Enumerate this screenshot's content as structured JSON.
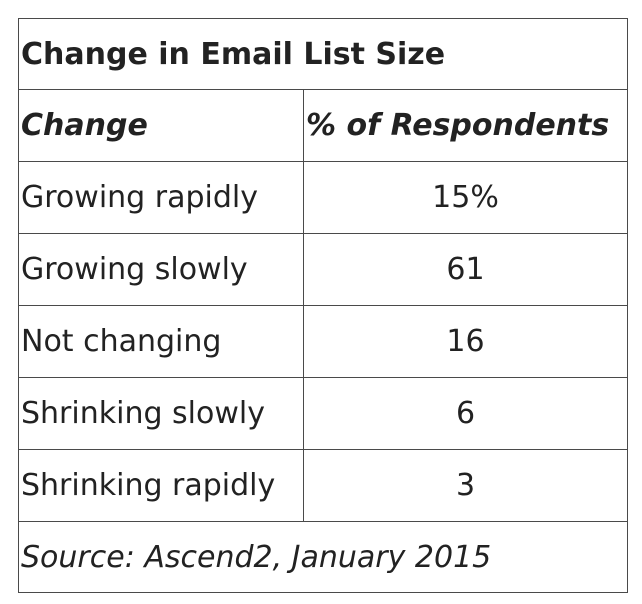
{
  "chart_data": {
    "type": "table",
    "title": "Change in Email List Size",
    "columns": [
      "Change",
      "% of Respondents"
    ],
    "rows": [
      {
        "label": "Growing rapidly",
        "value": "15%"
      },
      {
        "label": "Growing slowly",
        "value": "61"
      },
      {
        "label": "Not changing",
        "value": "16"
      },
      {
        "label": "Shrinking slowly",
        "value": "6"
      },
      {
        "label": "Shrinking rapidly",
        "value": "3"
      }
    ],
    "source": "Source: Ascend2, January 2015"
  }
}
